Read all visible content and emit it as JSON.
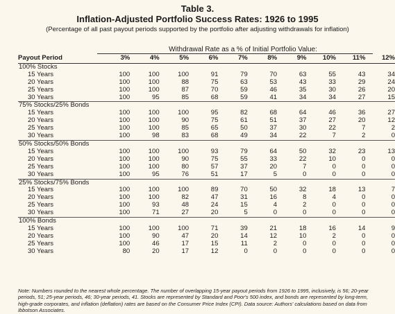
{
  "title_line1": "Table 3.",
  "title_line2": "Inflation-Adjusted Portfolio Success Rates: 1926 to 1995",
  "subtitle": "(Percentage of all past payout periods supported by the portfolio after adjusting withdrawals for inflation)",
  "column_group_header": "Withdrawal Rate as a % of Initial Portfolio Value:",
  "row_header": "Payout Period",
  "columns": [
    "3%",
    "4%",
    "5%",
    "6%",
    "7%",
    "8%",
    "9%",
    "10%",
    "11%",
    "12%"
  ],
  "groups": [
    {
      "label": "100% Stocks",
      "rows": [
        {
          "period": "15 Years",
          "values": [
            "100",
            "100",
            "100",
            "91",
            "79",
            "70",
            "63",
            "55",
            "43",
            "34"
          ]
        },
        {
          "period": "20 Years",
          "values": [
            "100",
            "100",
            "88",
            "75",
            "63",
            "53",
            "43",
            "33",
            "29",
            "24"
          ]
        },
        {
          "period": "25 Years",
          "values": [
            "100",
            "100",
            "87",
            "70",
            "59",
            "46",
            "35",
            "30",
            "26",
            "20"
          ]
        },
        {
          "period": "30 Years",
          "values": [
            "100",
            "95",
            "85",
            "68",
            "59",
            "41",
            "34",
            "34",
            "27",
            "15"
          ]
        }
      ]
    },
    {
      "label": "75% Stocks/25% Bonds",
      "rows": [
        {
          "period": "15 Years",
          "values": [
            "100",
            "100",
            "100",
            "95",
            "82",
            "68",
            "64",
            "46",
            "36",
            "27"
          ]
        },
        {
          "period": "20 Years",
          "values": [
            "100",
            "100",
            "90",
            "75",
            "61",
            "51",
            "37",
            "27",
            "20",
            "12"
          ]
        },
        {
          "period": "25 Years",
          "values": [
            "100",
            "100",
            "85",
            "65",
            "50",
            "37",
            "30",
            "22",
            "7",
            "2"
          ]
        },
        {
          "period": "30 Years",
          "values": [
            "100",
            "98",
            "83",
            "68",
            "49",
            "34",
            "22",
            "7",
            "2",
            "0"
          ]
        }
      ]
    },
    {
      "label": "50% Stocks/50% Bonds",
      "rows": [
        {
          "period": "15 Years",
          "values": [
            "100",
            "100",
            "100",
            "93",
            "79",
            "64",
            "50",
            "32",
            "23",
            "13"
          ]
        },
        {
          "period": "20 Years",
          "values": [
            "100",
            "100",
            "90",
            "75",
            "55",
            "33",
            "22",
            "10",
            "0",
            "0"
          ]
        },
        {
          "period": "25 Years",
          "values": [
            "100",
            "100",
            "80",
            "57",
            "37",
            "20",
            "7",
            "0",
            "0",
            "0"
          ]
        },
        {
          "period": "30 Years",
          "values": [
            "100",
            "95",
            "76",
            "51",
            "17",
            "5",
            "0",
            "0",
            "0",
            "0"
          ]
        }
      ]
    },
    {
      "label": "25% Stocks/75% Bonds",
      "rows": [
        {
          "period": "15 Years",
          "values": [
            "100",
            "100",
            "100",
            "89",
            "70",
            "50",
            "32",
            "18",
            "13",
            "7"
          ]
        },
        {
          "period": "20 Years",
          "values": [
            "100",
            "100",
            "82",
            "47",
            "31",
            "16",
            "8",
            "4",
            "0",
            "0"
          ]
        },
        {
          "period": "25 Years",
          "values": [
            "100",
            "93",
            "48",
            "24",
            "15",
            "4",
            "2",
            "0",
            "0",
            "0"
          ]
        },
        {
          "period": "30 Years",
          "values": [
            "100",
            "71",
            "27",
            "20",
            "5",
            "0",
            "0",
            "0",
            "0",
            "0"
          ]
        }
      ]
    },
    {
      "label": "100% Bonds",
      "rows": [
        {
          "period": "15 Years",
          "values": [
            "100",
            "100",
            "100",
            "71",
            "39",
            "21",
            "18",
            "16",
            "14",
            "9"
          ]
        },
        {
          "period": "20 Years",
          "values": [
            "100",
            "90",
            "47",
            "20",
            "14",
            "12",
            "10",
            "2",
            "0",
            "0"
          ]
        },
        {
          "period": "25 Years",
          "values": [
            "100",
            "46",
            "17",
            "15",
            "11",
            "2",
            "0",
            "0",
            "0",
            "0"
          ]
        },
        {
          "period": "30 Years",
          "values": [
            "80",
            "20",
            "17",
            "12",
            "0",
            "0",
            "0",
            "0",
            "0",
            "0"
          ]
        }
      ]
    }
  ],
  "note": "Note: Numbers rounded to the nearest whole percentage. The number of overlapping 15-year payout periods from 1926 to 1995, inclusively, is 56; 20-year periods, 51; 25-year periods, 46; 30-year periods, 41. Stocks are represented by Standard and Poor's 500 index, and bonds are represented by long-term, high-grade corporates, and inflation (deflation) rates are based on the Consumer Price Index (CPI). Data source: Authors' calculations based on data from Ibbotson Associates."
}
